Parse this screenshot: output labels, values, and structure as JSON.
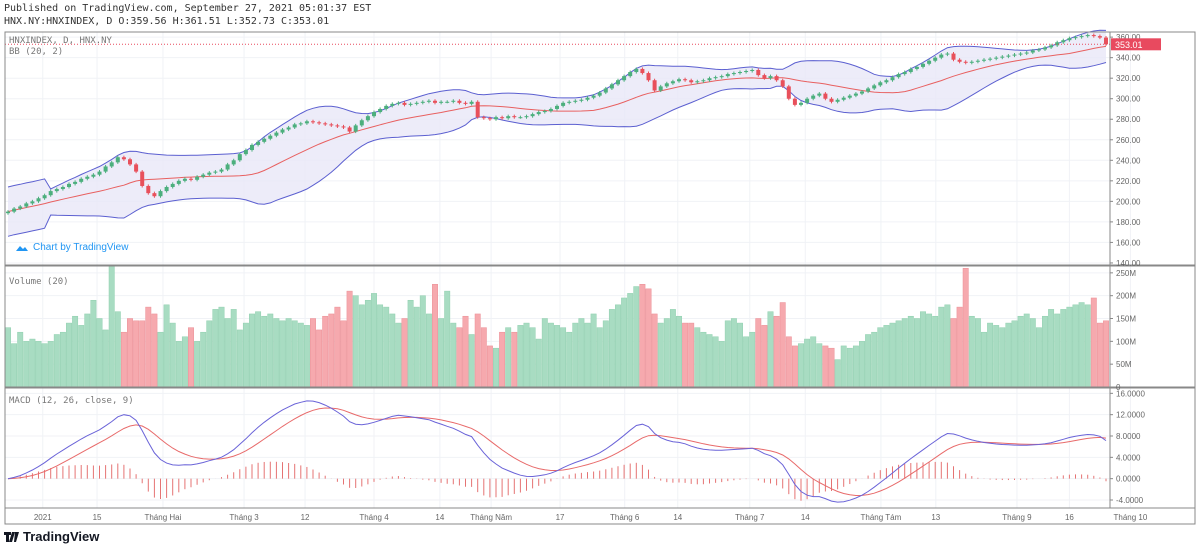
{
  "header": {
    "published": "Published on TradingView.com, September 27, 2021 05:01:37 EST",
    "ohlc": "HNX.NY:HNXINDEX, D O:359.56 H:361.51 L:352.73 C:353.01"
  },
  "legends": {
    "symbol": "HNXINDEX, D, HNX.NY",
    "bb": "BB (20, 2)",
    "volume": "Volume (20)",
    "macd": "MACD (12, 26, close, 9)"
  },
  "watermark": "Chart by TradingView",
  "logo": "TradingView",
  "colors": {
    "up": "#4caf7d",
    "down": "#e8505b",
    "vol_up": "#a8dcc2",
    "vol_down": "#f6a9ae",
    "bb_band": "#5b5fd0",
    "bb_basis": "#e86060",
    "bb_fill": "#e9e7f8",
    "macd": "#6a63d8",
    "signal": "#e86a6a",
    "hist": "#e57373",
    "last_price": "#e84a5f"
  },
  "chart_data": {
    "type": "candlestick",
    "last_price_label": "353.01",
    "indicators": {
      "bb": {
        "length": 20,
        "mult": 2
      },
      "macd": {
        "fast": 12,
        "slow": 26,
        "signal": 9
      }
    },
    "closes": [
      190,
      193,
      195,
      198,
      200,
      203,
      206,
      210,
      212,
      214,
      217,
      219,
      222,
      224,
      226,
      229,
      234,
      238,
      243,
      241,
      236,
      229,
      215,
      208,
      205,
      210,
      214,
      217,
      220,
      222,
      221,
      224,
      226,
      228,
      229,
      231,
      236,
      240,
      246,
      250,
      255,
      258,
      261,
      264,
      267,
      270,
      272,
      275,
      276,
      278,
      277,
      276,
      275,
      274,
      273,
      272,
      268,
      274,
      279,
      283,
      287,
      290,
      293,
      295,
      296,
      294,
      295,
      296,
      297,
      298,
      296,
      297,
      297,
      298,
      296,
      295,
      297,
      282,
      281,
      280,
      282,
      281,
      283,
      282,
      282,
      283,
      285,
      287,
      288,
      290,
      293,
      296,
      297,
      298,
      299,
      301,
      303,
      306,
      310,
      314,
      318,
      322,
      326,
      329,
      325,
      318,
      308,
      312,
      315,
      317,
      319,
      318,
      316,
      317,
      318,
      320,
      321,
      322,
      324,
      325,
      326,
      327,
      328,
      323,
      320,
      322,
      318,
      312,
      300,
      294,
      296,
      300,
      303,
      305,
      300,
      297,
      299,
      301,
      303,
      305,
      307,
      310,
      313,
      316,
      318,
      321,
      324,
      326,
      329,
      331,
      334,
      337,
      340,
      343,
      344,
      338,
      336,
      335,
      336,
      337,
      338,
      339,
      340,
      341,
      342,
      343,
      344,
      345,
      347,
      348,
      350,
      352,
      355,
      357,
      359,
      360,
      361,
      362,
      361,
      359.56,
      353.01
    ],
    "volumes_m": [
      130,
      95,
      120,
      100,
      105,
      100,
      95,
      100,
      115,
      120,
      140,
      155,
      135,
      160,
      190,
      150,
      125,
      265,
      165,
      120,
      150,
      145,
      145,
      175,
      160,
      120,
      180,
      140,
      100,
      110,
      130,
      100,
      120,
      145,
      170,
      175,
      150,
      170,
      125,
      140,
      160,
      165,
      155,
      160,
      150,
      145,
      150,
      145,
      140,
      135,
      150,
      125,
      155,
      160,
      175,
      145,
      210,
      200,
      180,
      190,
      205,
      180,
      175,
      160,
      140,
      150,
      190,
      175,
      200,
      160,
      225,
      150,
      210,
      140,
      130,
      155,
      115,
      160,
      130,
      90,
      85,
      120,
      130,
      120,
      135,
      140,
      130,
      105,
      150,
      140,
      135,
      130,
      120,
      140,
      150,
      140,
      160,
      130,
      145,
      170,
      180,
      195,
      205,
      220,
      225,
      215,
      160,
      140,
      150,
      170,
      155,
      140,
      140,
      130,
      120,
      115,
      110,
      100,
      145,
      150,
      140,
      110,
      120,
      150,
      135,
      165,
      155,
      185,
      110,
      90,
      95,
      105,
      110,
      95,
      90,
      85,
      60,
      90,
      85,
      90,
      100,
      115,
      120,
      130,
      135,
      140,
      145,
      150,
      155,
      150,
      165,
      160,
      155,
      175,
      180,
      150,
      175,
      260,
      155,
      150,
      120,
      140,
      135,
      130,
      140,
      145,
      155,
      160,
      150,
      130,
      155,
      170,
      160,
      170,
      175,
      180,
      185,
      180,
      195,
      140,
      145
    ],
    "price_axis": {
      "ticks": [
        "360.00",
        "340.00",
        "320.00",
        "300.00",
        "280.00",
        "260.00",
        "240.00",
        "220.00",
        "200.00",
        "180.00",
        "160.00",
        "140.00"
      ],
      "range": [
        138,
        365
      ]
    },
    "volume_axis": {
      "ticks": [
        "250M",
        "200M",
        "150M",
        "100M",
        "50M",
        "0"
      ],
      "range": [
        0,
        265
      ]
    },
    "macd_axis": {
      "ticks": [
        "16.0000",
        "12.0000",
        "8.0000",
        "4.0000",
        "0.0000",
        "-4.0000"
      ],
      "range": [
        -5.5,
        17
      ]
    },
    "time_axis": [
      {
        "label": "2021",
        "bar": 5.7
      },
      {
        "label": "15",
        "bar": 14.6
      },
      {
        "label": "Tháng Hai",
        "bar": 25.4
      },
      {
        "label": "Tháng 3",
        "bar": 38.7
      },
      {
        "label": "12",
        "bar": 48.7
      },
      {
        "label": "Tháng 4",
        "bar": 60
      },
      {
        "label": "14",
        "bar": 70.8
      },
      {
        "label": "Tháng Năm",
        "bar": 79.2
      },
      {
        "label": "17",
        "bar": 90.5
      },
      {
        "label": "Tháng 6",
        "bar": 101.1
      },
      {
        "label": "14",
        "bar": 109.8
      },
      {
        "label": "Tháng 7",
        "bar": 121.6
      },
      {
        "label": "14",
        "bar": 130.7
      },
      {
        "label": "Tháng Tám",
        "bar": 143.1
      },
      {
        "label": "13",
        "bar": 152.1
      },
      {
        "label": "Tháng 9",
        "bar": 165.4
      },
      {
        "label": "16",
        "bar": 174
      },
      {
        "label": "Tháng 10",
        "bar": 184
      }
    ]
  }
}
